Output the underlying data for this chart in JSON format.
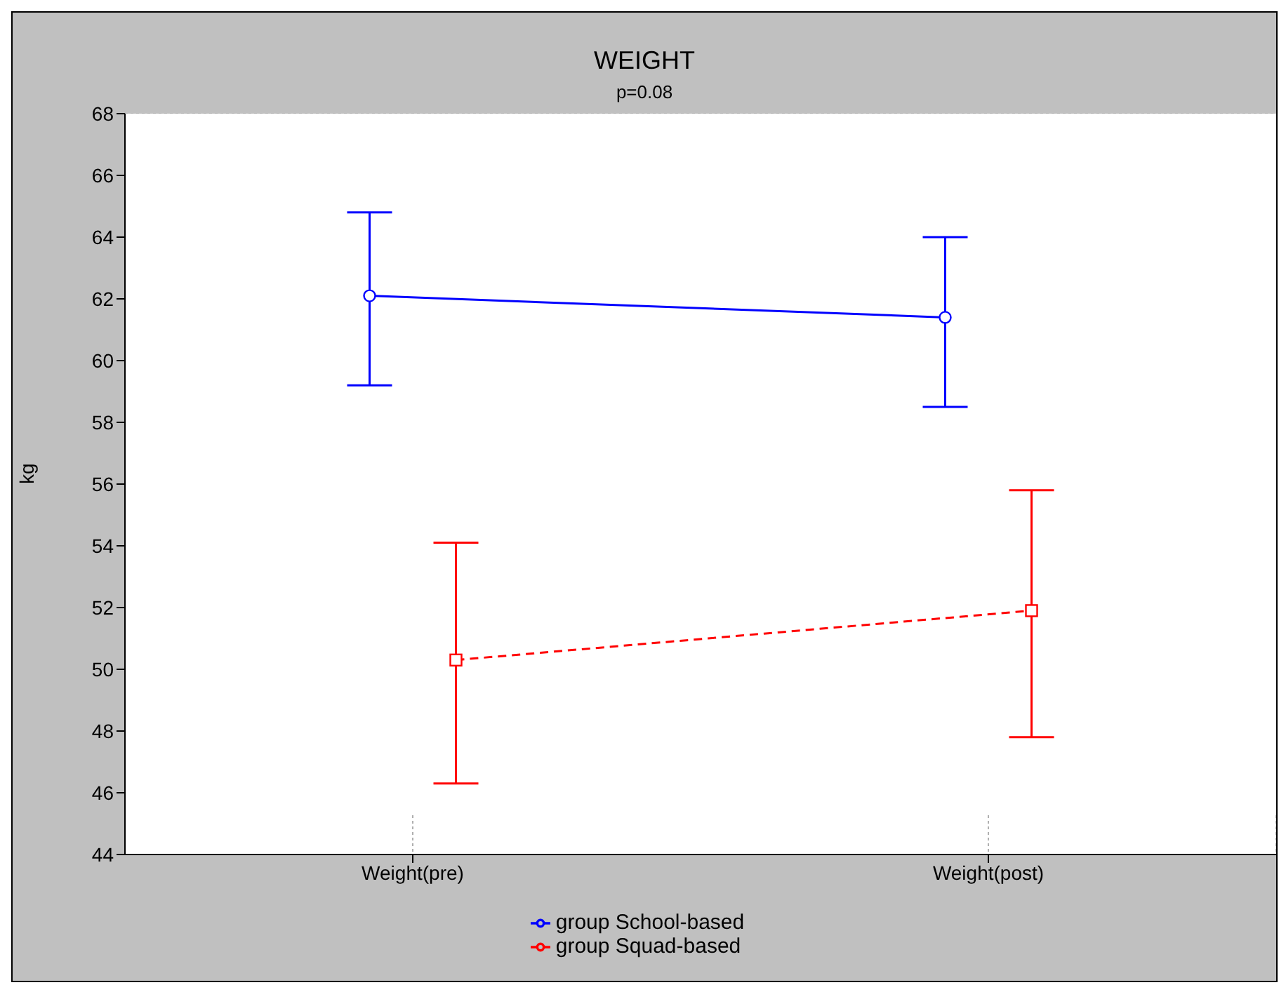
{
  "chart_data": {
    "type": "line",
    "title": "WEIGHT",
    "subtitle": "p=0.08",
    "ylabel": "kg",
    "categories": [
      "Weight(pre)",
      "Weight(post)"
    ],
    "series": [
      {
        "name": "group School-based",
        "color": "#0000ff",
        "values": [
          62.1,
          61.4
        ],
        "errors": [
          [
            59.2,
            64.8
          ],
          [
            58.5,
            64.0
          ]
        ],
        "marker": "circle",
        "line_style": "solid"
      },
      {
        "name": "group Squad-based",
        "color": "#ff0000",
        "values": [
          50.3,
          51.9
        ],
        "errors": [
          [
            46.3,
            54.1
          ],
          [
            47.8,
            55.8
          ]
        ],
        "marker": "square",
        "line_style": "dashed"
      }
    ],
    "ylim": [
      44,
      68
    ],
    "yticks": [
      44,
      46,
      48,
      50,
      52,
      54,
      56,
      58,
      60,
      62,
      64,
      66,
      68
    ],
    "grid": true,
    "legend": "bottom"
  }
}
